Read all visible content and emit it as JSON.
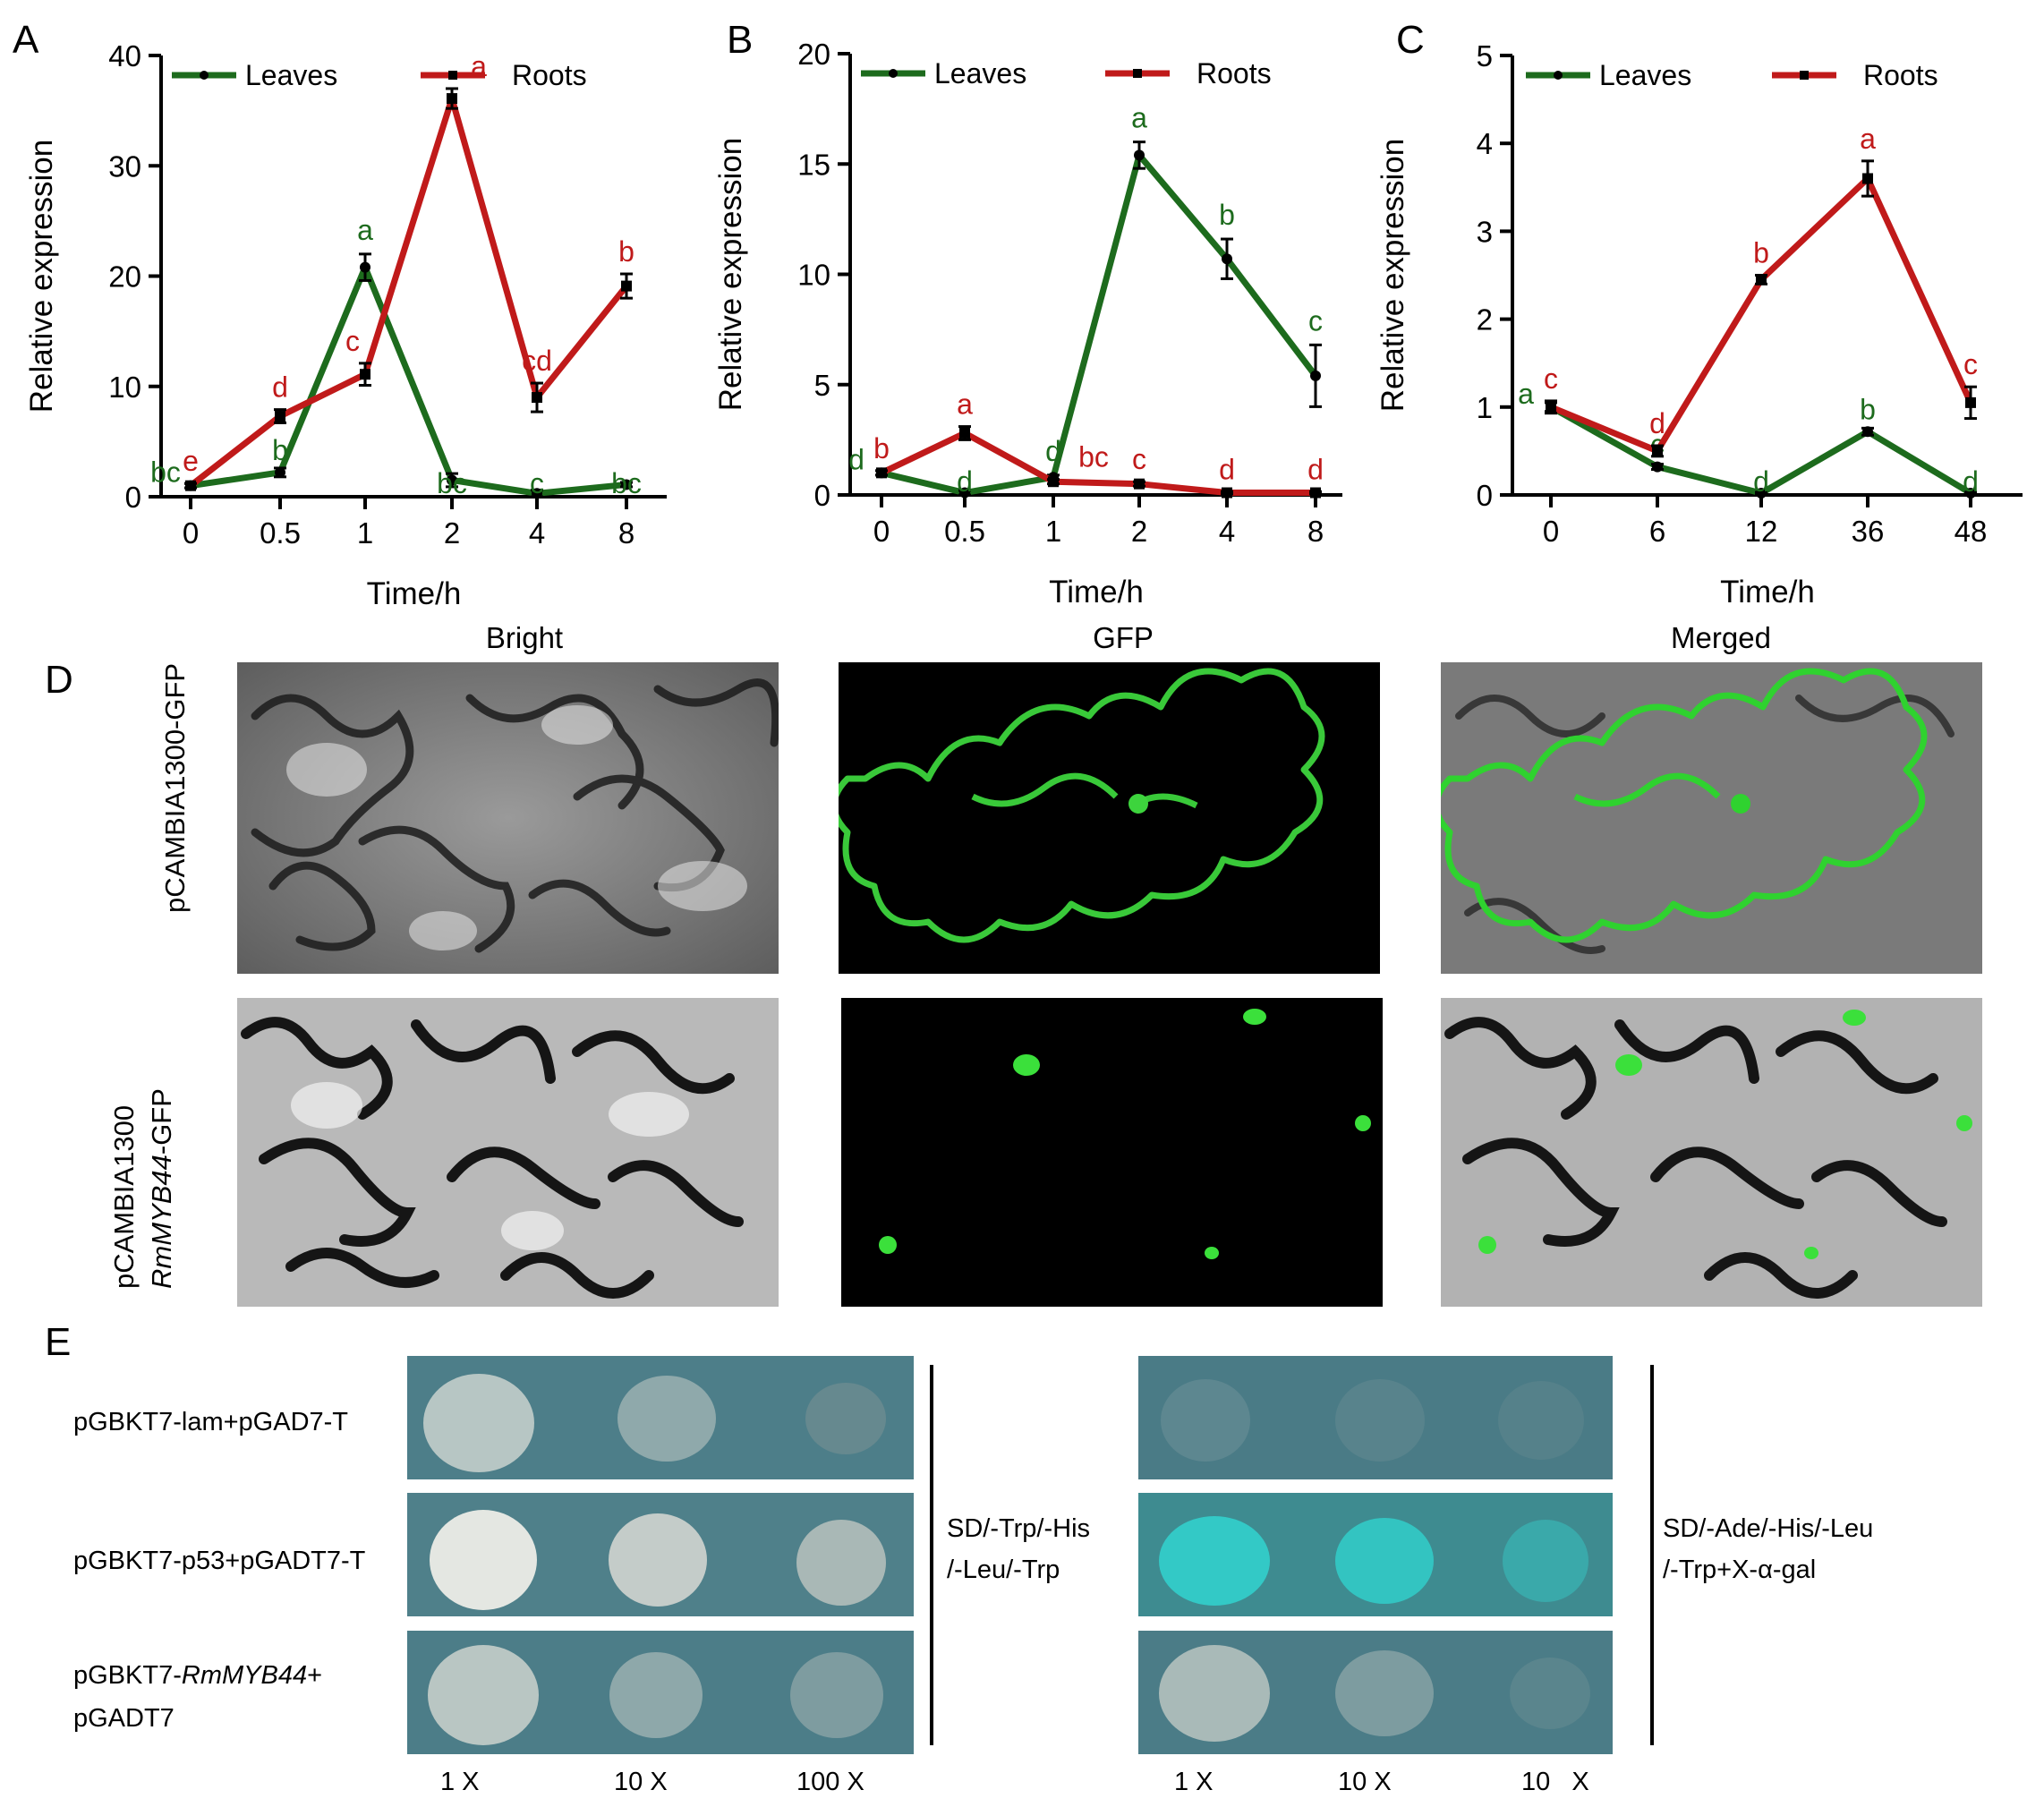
{
  "panel_letters": [
    "A",
    "B",
    "C",
    "D",
    "E"
  ],
  "chart_data": [
    {
      "type": "line",
      "panel": "A",
      "xlabel": "Time/h",
      "ylabel": "Relative expression",
      "categories": [
        "0",
        "0.5",
        "1",
        "2",
        "4",
        "8"
      ],
      "ylim": [
        0,
        40
      ],
      "yticks": [
        0,
        10,
        20,
        30,
        40
      ],
      "legend_position": "top",
      "series": [
        {
          "name": "Leaves",
          "color": "#1d6b1d",
          "marker": "circle",
          "values": [
            1,
            2.2,
            20.8,
            1.5,
            0.3,
            1.1
          ],
          "errors": [
            0.2,
            0.4,
            1.2,
            0.6,
            0.3,
            0.2
          ],
          "labels": [
            "bc",
            "b",
            "a",
            "bc",
            "c",
            "bc"
          ]
        },
        {
          "name": "Roots",
          "color": "#c01a1a",
          "marker": "square",
          "values": [
            1,
            7.3,
            11.1,
            36.1,
            9,
            19.1
          ],
          "errors": [
            0.2,
            0.6,
            1.0,
            0.9,
            1.3,
            1.1
          ],
          "labels": [
            "e",
            "d",
            "c",
            "a",
            "cd",
            "b"
          ]
        }
      ]
    },
    {
      "type": "line",
      "panel": "B",
      "xlabel": "Time/h",
      "ylabel": "Relative expression",
      "categories": [
        "0",
        "0.5",
        "1",
        "2",
        "4",
        "8"
      ],
      "ylim": [
        0,
        20
      ],
      "yticks": [
        0,
        5,
        10,
        15,
        20
      ],
      "legend_position": "top",
      "series": [
        {
          "name": "Leaves",
          "color": "#1d6b1d",
          "marker": "circle",
          "values": [
            1,
            0.1,
            0.8,
            15.4,
            10.7,
            5.4
          ],
          "errors": [
            0.1,
            0.1,
            0.1,
            0.6,
            0.9,
            1.4
          ],
          "labels": [
            "d",
            "d",
            "d",
            "a",
            "b",
            "c"
          ]
        },
        {
          "name": "Roots",
          "color": "#c01a1a",
          "marker": "square",
          "values": [
            1,
            2.8,
            0.6,
            0.5,
            0.1,
            0.1
          ],
          "errors": [
            0.1,
            0.3,
            0.1,
            0.1,
            0.05,
            0.05
          ],
          "labels": [
            "b",
            "a",
            "bc",
            "c",
            "d",
            "d"
          ]
        }
      ]
    },
    {
      "type": "line",
      "panel": "C",
      "xlabel": "Time/h",
      "ylabel": "Relative expression",
      "categories": [
        "0",
        "6",
        "12",
        "36",
        "48"
      ],
      "ylim": [
        0,
        5
      ],
      "yticks": [
        0,
        1,
        2,
        3,
        4,
        5
      ],
      "legend_position": "top",
      "series": [
        {
          "name": "Leaves",
          "color": "#1d6b1d",
          "marker": "circle",
          "values": [
            1,
            0.32,
            0.02,
            0.72,
            0.02
          ],
          "errors": [
            0.05,
            0.03,
            0.01,
            0.04,
            0.01
          ],
          "labels": [
            "a",
            "c",
            "d",
            "b",
            "d"
          ]
        },
        {
          "name": "Roots",
          "color": "#c01a1a",
          "marker": "square",
          "values": [
            1,
            0.5,
            2.45,
            3.6,
            1.05
          ],
          "errors": [
            0.07,
            0.06,
            0.05,
            0.2,
            0.18
          ],
          "labels": [
            "c",
            "d",
            "b",
            "a",
            "c"
          ]
        }
      ]
    }
  ],
  "panel_d": {
    "column_titles": [
      "Bright",
      "GFP",
      "Merged"
    ],
    "row1_label": "pCAMBIA1300-GFP",
    "row2_label_line1": "pCAMBIA1300",
    "row2_label_gene": "RmMYB44",
    "row2_label_suffix": "-GFP"
  },
  "panel_e": {
    "rows": [
      {
        "label": "pGBKT7-lam+pGAD7-T"
      },
      {
        "label": "pGBKT7-p53+pGADT7-T"
      },
      {
        "label_prefix": "pGBKT7-",
        "label_gene": "RmMYB44",
        "label_suffix": "+",
        "label_line2": "pGADT7"
      }
    ],
    "condition_left_line1": "SD/-Trp/-His",
    "condition_left_line2": "/-Leu/-Trp",
    "condition_right_line1": "SD/-Ade/-His/-Leu",
    "condition_right_line2": "/-Trp+X-α-gal",
    "dilutions_left": [
      "1 X",
      "10 X",
      "100 X"
    ],
    "dilutions_right": [
      "1 X",
      "10 X",
      "10   X"
    ]
  }
}
